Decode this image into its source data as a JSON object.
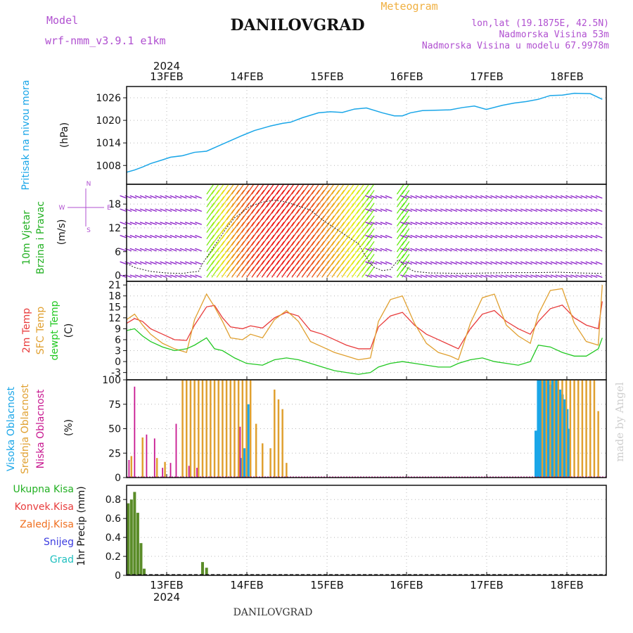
{
  "header": {
    "model_label": "Model",
    "model_name": "wrf-nmm_v3.9.1  e1km",
    "station": "DANILOVGRAD",
    "meteogram_label": "Meteogram",
    "lonlat": "lon,lat (19.1875E, 42.5N)",
    "elevation": "Nadmorska Visina 53m",
    "model_elevation": "Nadmorska Visina u modelu 67.9978m",
    "footer_station": "DANILOVGRAD",
    "credit": "made by Angel"
  },
  "colors": {
    "pressure": "#1aa6e8",
    "wind_label": "#22b022",
    "wind_purple": "#8a1cc8",
    "temp2m": "#e83c3c",
    "sfctemp": "#e0a030",
    "dewpoint": "#22c822",
    "high_cloud": "#1aa6e8",
    "mid_cloud": "#e0a030",
    "low_cloud": "#c81890",
    "total_precip": "#22b022",
    "conv_precip": "#e83c3c",
    "frozen_precip": "#f07020",
    "snow": "#3c3ce0",
    "hail": "#20c0c0",
    "title_purple": "#b050d0",
    "meteogram_orange": "#f0b040",
    "credit_gray": "#cfcfcf"
  },
  "chart_data": [
    {
      "type": "line",
      "panel": "pressure",
      "ylabel_main": "Pritisak na nivou mora",
      "ylabel_unit": "(hPa)",
      "ylim": [
        1003,
        1029
      ],
      "yticks": [
        1008,
        1014,
        1020,
        1026
      ],
      "x_top_labels": [
        "13FEB",
        "14FEB",
        "15FEB",
        "16FEB",
        "17FEB",
        "18FEB"
      ],
      "x_top_year": "2024",
      "grid": true,
      "series": [
        {
          "x": [
            0,
            0.1,
            0.2,
            0.3,
            0.45,
            0.55,
            0.7,
            0.85,
            1.0,
            1.15,
            1.3,
            1.45,
            1.6,
            1.8,
            1.95,
            2.05,
            2.2,
            2.4,
            2.55,
            2.7,
            2.85,
            3.0,
            3.2,
            3.35,
            3.45,
            3.55,
            3.7,
            3.9,
            4.05,
            4.2,
            4.35,
            4.5,
            4.7,
            4.85,
            5.0,
            5.15,
            5.3,
            5.45,
            5.6,
            5.8,
            5.95
          ],
          "values": [
            1006.2,
            1006.8,
            1007.6,
            1008.5,
            1009.5,
            1010.2,
            1010.6,
            1011.5,
            1011.8,
            1013.2,
            1014.6,
            1016.0,
            1017.3,
            1018.5,
            1019.2,
            1019.5,
            1020.7,
            1022.0,
            1022.3,
            1022.1,
            1023.0,
            1023.3,
            1022.0,
            1021.2,
            1021.2,
            1022.0,
            1022.6,
            1022.7,
            1022.8,
            1023.4,
            1023.8,
            1022.9,
            1024.0,
            1024.6,
            1025.0,
            1025.6,
            1026.6,
            1026.7,
            1027.2,
            1027.1,
            1025.6
          ]
        }
      ]
    },
    {
      "type": "scatter",
      "panel": "wind",
      "ylabel_main": "10m Vjetar",
      "ylabel_main2": "Brzina i Pravac",
      "ylabel_unit": "(m/s)",
      "compass": [
        "N",
        "E",
        "W",
        "S"
      ],
      "ylim": [
        -1.5,
        23
      ],
      "yticks": [
        0,
        6,
        12,
        18
      ],
      "grid": true,
      "series": [
        {
          "name": "speed",
          "x": [
            0.0,
            0.1,
            0.2,
            0.3,
            0.5,
            0.7,
            0.8,
            0.9,
            0.95,
            1.05,
            1.15,
            1.25,
            1.35,
            1.45,
            1.55,
            1.7,
            1.85,
            2.0,
            2.15,
            2.3,
            2.45,
            2.6,
            2.75,
            2.9,
            3.0,
            3.05,
            3.1,
            3.2,
            3.3,
            3.4,
            3.5,
            3.6,
            3.7,
            3.8,
            3.9,
            4.2,
            4.5,
            4.8,
            5.1,
            5.4,
            5.7,
            5.95
          ],
          "values": [
            3,
            2,
            1.5,
            1,
            0.6,
            0.5,
            0.8,
            1.0,
            3.0,
            6.0,
            9.0,
            12.0,
            14.5,
            16.0,
            17.5,
            18.5,
            19.0,
            18.5,
            17.5,
            16.5,
            14.0,
            12.0,
            10.0,
            8.0,
            4.5,
            3.0,
            2.0,
            1.2,
            1.5,
            4.0,
            2.0,
            1.0,
            0.8,
            0.6,
            0.6,
            0.5,
            0.6,
            0.7,
            0.7,
            0.8,
            0.6,
            0.5
          ]
        }
      ]
    },
    {
      "type": "line",
      "panel": "temperature",
      "ylabel_main": "2m Temp",
      "ylabel_main2": "SFC Temp",
      "ylabel_main3": "dewpt Temp",
      "ylabel_unit": "(C)",
      "ylim": [
        -5,
        22
      ],
      "yticks": [
        -3,
        0,
        3,
        6,
        9,
        12,
        15,
        18,
        21
      ],
      "grid": true,
      "series": [
        {
          "name": "2m Temp",
          "x": [
            0,
            0.1,
            0.2,
            0.3,
            0.45,
            0.6,
            0.75,
            0.85,
            1.0,
            1.1,
            1.2,
            1.3,
            1.45,
            1.55,
            1.7,
            1.85,
            2.0,
            2.15,
            2.3,
            2.45,
            2.6,
            2.75,
            2.9,
            3.05,
            3.15,
            3.3,
            3.45,
            3.6,
            3.75,
            3.9,
            4.05,
            4.15,
            4.3,
            4.45,
            4.6,
            4.75,
            4.9,
            5.05,
            5.15,
            5.3,
            5.45,
            5.6,
            5.75,
            5.9,
            5.95
          ],
          "values": [
            10.5,
            11.8,
            11.0,
            9.0,
            7.5,
            6.0,
            5.8,
            10.0,
            15.0,
            15.4,
            12.0,
            9.5,
            9.0,
            9.8,
            9.2,
            12.0,
            13.5,
            12.5,
            8.5,
            7.5,
            6.0,
            4.5,
            3.5,
            3.5,
            9.5,
            12.5,
            13.5,
            10.0,
            7.5,
            6.0,
            4.5,
            3.5,
            9.0,
            13.0,
            14.0,
            11.0,
            9.0,
            7.5,
            11.0,
            14.5,
            15.5,
            12.0,
            10.0,
            9.0,
            16.5
          ]
        },
        {
          "name": "SFC Temp",
          "x": [
            0,
            0.1,
            0.2,
            0.3,
            0.45,
            0.6,
            0.75,
            0.85,
            1.0,
            1.1,
            1.2,
            1.3,
            1.45,
            1.55,
            1.7,
            1.85,
            2.0,
            2.15,
            2.3,
            2.45,
            2.6,
            2.75,
            2.9,
            3.05,
            3.15,
            3.3,
            3.45,
            3.6,
            3.75,
            3.9,
            4.05,
            4.15,
            4.3,
            4.45,
            4.6,
            4.75,
            4.9,
            5.05,
            5.15,
            5.3,
            5.45,
            5.6,
            5.75,
            5.9,
            5.95
          ],
          "values": [
            11.5,
            13.0,
            10.0,
            7.5,
            5.0,
            3.5,
            2.5,
            11.5,
            18.5,
            15.0,
            11.0,
            6.5,
            6.0,
            7.5,
            6.5,
            11.5,
            14.0,
            11.0,
            5.5,
            4.0,
            2.5,
            1.5,
            0.5,
            1.0,
            11.0,
            17.0,
            18.0,
            10.5,
            5.0,
            2.5,
            1.5,
            0.5,
            10.5,
            17.5,
            18.5,
            10.0,
            7.0,
            5.0,
            13.0,
            19.5,
            20.0,
            10.5,
            5.5,
            4.5,
            21.0
          ]
        },
        {
          "name": "dewpt Temp",
          "x": [
            0,
            0.1,
            0.2,
            0.3,
            0.45,
            0.6,
            0.75,
            0.85,
            1.0,
            1.1,
            1.2,
            1.35,
            1.5,
            1.7,
            1.85,
            2.0,
            2.15,
            2.3,
            2.45,
            2.6,
            2.75,
            2.9,
            3.05,
            3.15,
            3.3,
            3.45,
            3.6,
            3.75,
            3.9,
            4.05,
            4.15,
            4.3,
            4.45,
            4.6,
            4.75,
            4.9,
            5.05,
            5.15,
            5.3,
            5.45,
            5.6,
            5.75,
            5.9,
            5.95
          ],
          "values": [
            8.5,
            9.0,
            7.0,
            5.5,
            4.0,
            3.0,
            3.5,
            4.5,
            6.5,
            3.5,
            3.0,
            1.0,
            -0.5,
            -1.0,
            0.5,
            1.0,
            0.5,
            -0.5,
            -1.5,
            -2.5,
            -3.0,
            -3.5,
            -3.0,
            -1.5,
            -0.5,
            0.0,
            -0.5,
            -1.0,
            -1.5,
            -1.5,
            -0.5,
            0.5,
            1.0,
            0.0,
            -0.5,
            -1.0,
            0.0,
            4.5,
            4.0,
            2.5,
            1.5,
            1.5,
            3.5,
            6.5
          ]
        }
      ]
    },
    {
      "type": "bar",
      "panel": "cloud",
      "ylabel_main": "Visoka Oblacnost",
      "ylabel_main2": "Srednja Oblacnost",
      "ylabel_main3": "Niska Oblacnost",
      "ylabel_unit": "(%)",
      "ylim": [
        0,
        100
      ],
      "yticks": [
        0,
        25,
        50,
        75,
        100
      ],
      "grid": true,
      "series": [
        {
          "name": "Visoka Oblacnost",
          "x": [
            1.43,
            1.47,
            1.52,
            5.12,
            5.15,
            5.18,
            5.21,
            5.24,
            5.27,
            5.3,
            5.33,
            5.36,
            5.39,
            5.42,
            5.45,
            5.48,
            5.51,
            5.54
          ],
          "values": [
            20,
            30,
            75,
            48,
            100,
            100,
            100,
            100,
            100,
            95,
            100,
            100,
            100,
            90,
            85,
            80,
            70,
            50
          ]
        },
        {
          "name": "Srednja Oblacnost",
          "x": [
            0.06,
            0.2,
            0.38,
            0.48,
            0.7,
            0.75,
            0.8,
            0.85,
            0.9,
            0.95,
            1.0,
            1.05,
            1.1,
            1.15,
            1.2,
            1.25,
            1.3,
            1.35,
            1.4,
            1.45,
            1.5,
            1.55,
            1.62,
            1.7,
            1.8,
            1.85,
            1.9,
            1.95,
            2.0,
            5.2,
            5.25,
            5.3,
            5.35,
            5.4,
            5.45,
            5.5,
            5.55,
            5.6,
            5.65,
            5.7,
            5.75,
            5.8,
            5.85,
            5.9
          ],
          "values": [
            22,
            41,
            20,
            16,
            100,
            100,
            100,
            100,
            100,
            100,
            100,
            100,
            100,
            100,
            100,
            100,
            100,
            100,
            100,
            100,
            100,
            100,
            55,
            35,
            30,
            90,
            80,
            70,
            15,
            100,
            100,
            100,
            100,
            100,
            100,
            100,
            100,
            100,
            100,
            100,
            100,
            100,
            100,
            68
          ]
        },
        {
          "name": "Niska Oblacnost",
          "x": [
            0.03,
            0.1,
            0.25,
            0.35,
            0.45,
            0.55,
            0.62,
            0.78,
            0.88,
            1.42
          ],
          "values": [
            18,
            93,
            44,
            40,
            10,
            15,
            55,
            12,
            10,
            52
          ]
        }
      ]
    },
    {
      "type": "bar",
      "panel": "precip",
      "ylabel_main": "1hr Precip (mm)",
      "legend": [
        "Ukupna  Kisa",
        "Konvek.Kisa",
        "Zaledj.Kisa",
        "Snijeg",
        "Grad"
      ],
      "ylim": [
        0,
        0.95
      ],
      "yticks": [
        0,
        0.2,
        0.4,
        0.6,
        0.8
      ],
      "x_bottom_labels": [
        "13FEB",
        "14FEB",
        "15FEB",
        "16FEB",
        "17FEB",
        "18FEB"
      ],
      "x_bottom_year": "2024",
      "grid": true,
      "series": [
        {
          "name": "Ukupna  Kisa",
          "x": [
            0.02,
            0.06,
            0.1,
            0.14,
            0.18,
            0.22,
            0.26,
            0.95,
            1.0
          ],
          "values": [
            0.76,
            0.8,
            0.88,
            0.66,
            0.34,
            0.07,
            0.0,
            0.14,
            0.08
          ]
        }
      ]
    }
  ]
}
